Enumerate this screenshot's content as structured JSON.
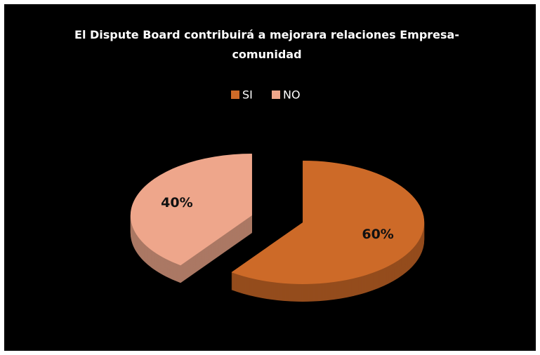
{
  "chart_data": {
    "type": "pie",
    "title": "El Dispute Board contribuirá a mejorara relaciones Empresa-comunidad",
    "categories": [
      "SI",
      "NO"
    ],
    "values": [
      60,
      40
    ],
    "value_labels": [
      "60%",
      "40%"
    ],
    "colors": [
      "#cd6a28",
      "#eea68b"
    ],
    "legend": "top"
  }
}
